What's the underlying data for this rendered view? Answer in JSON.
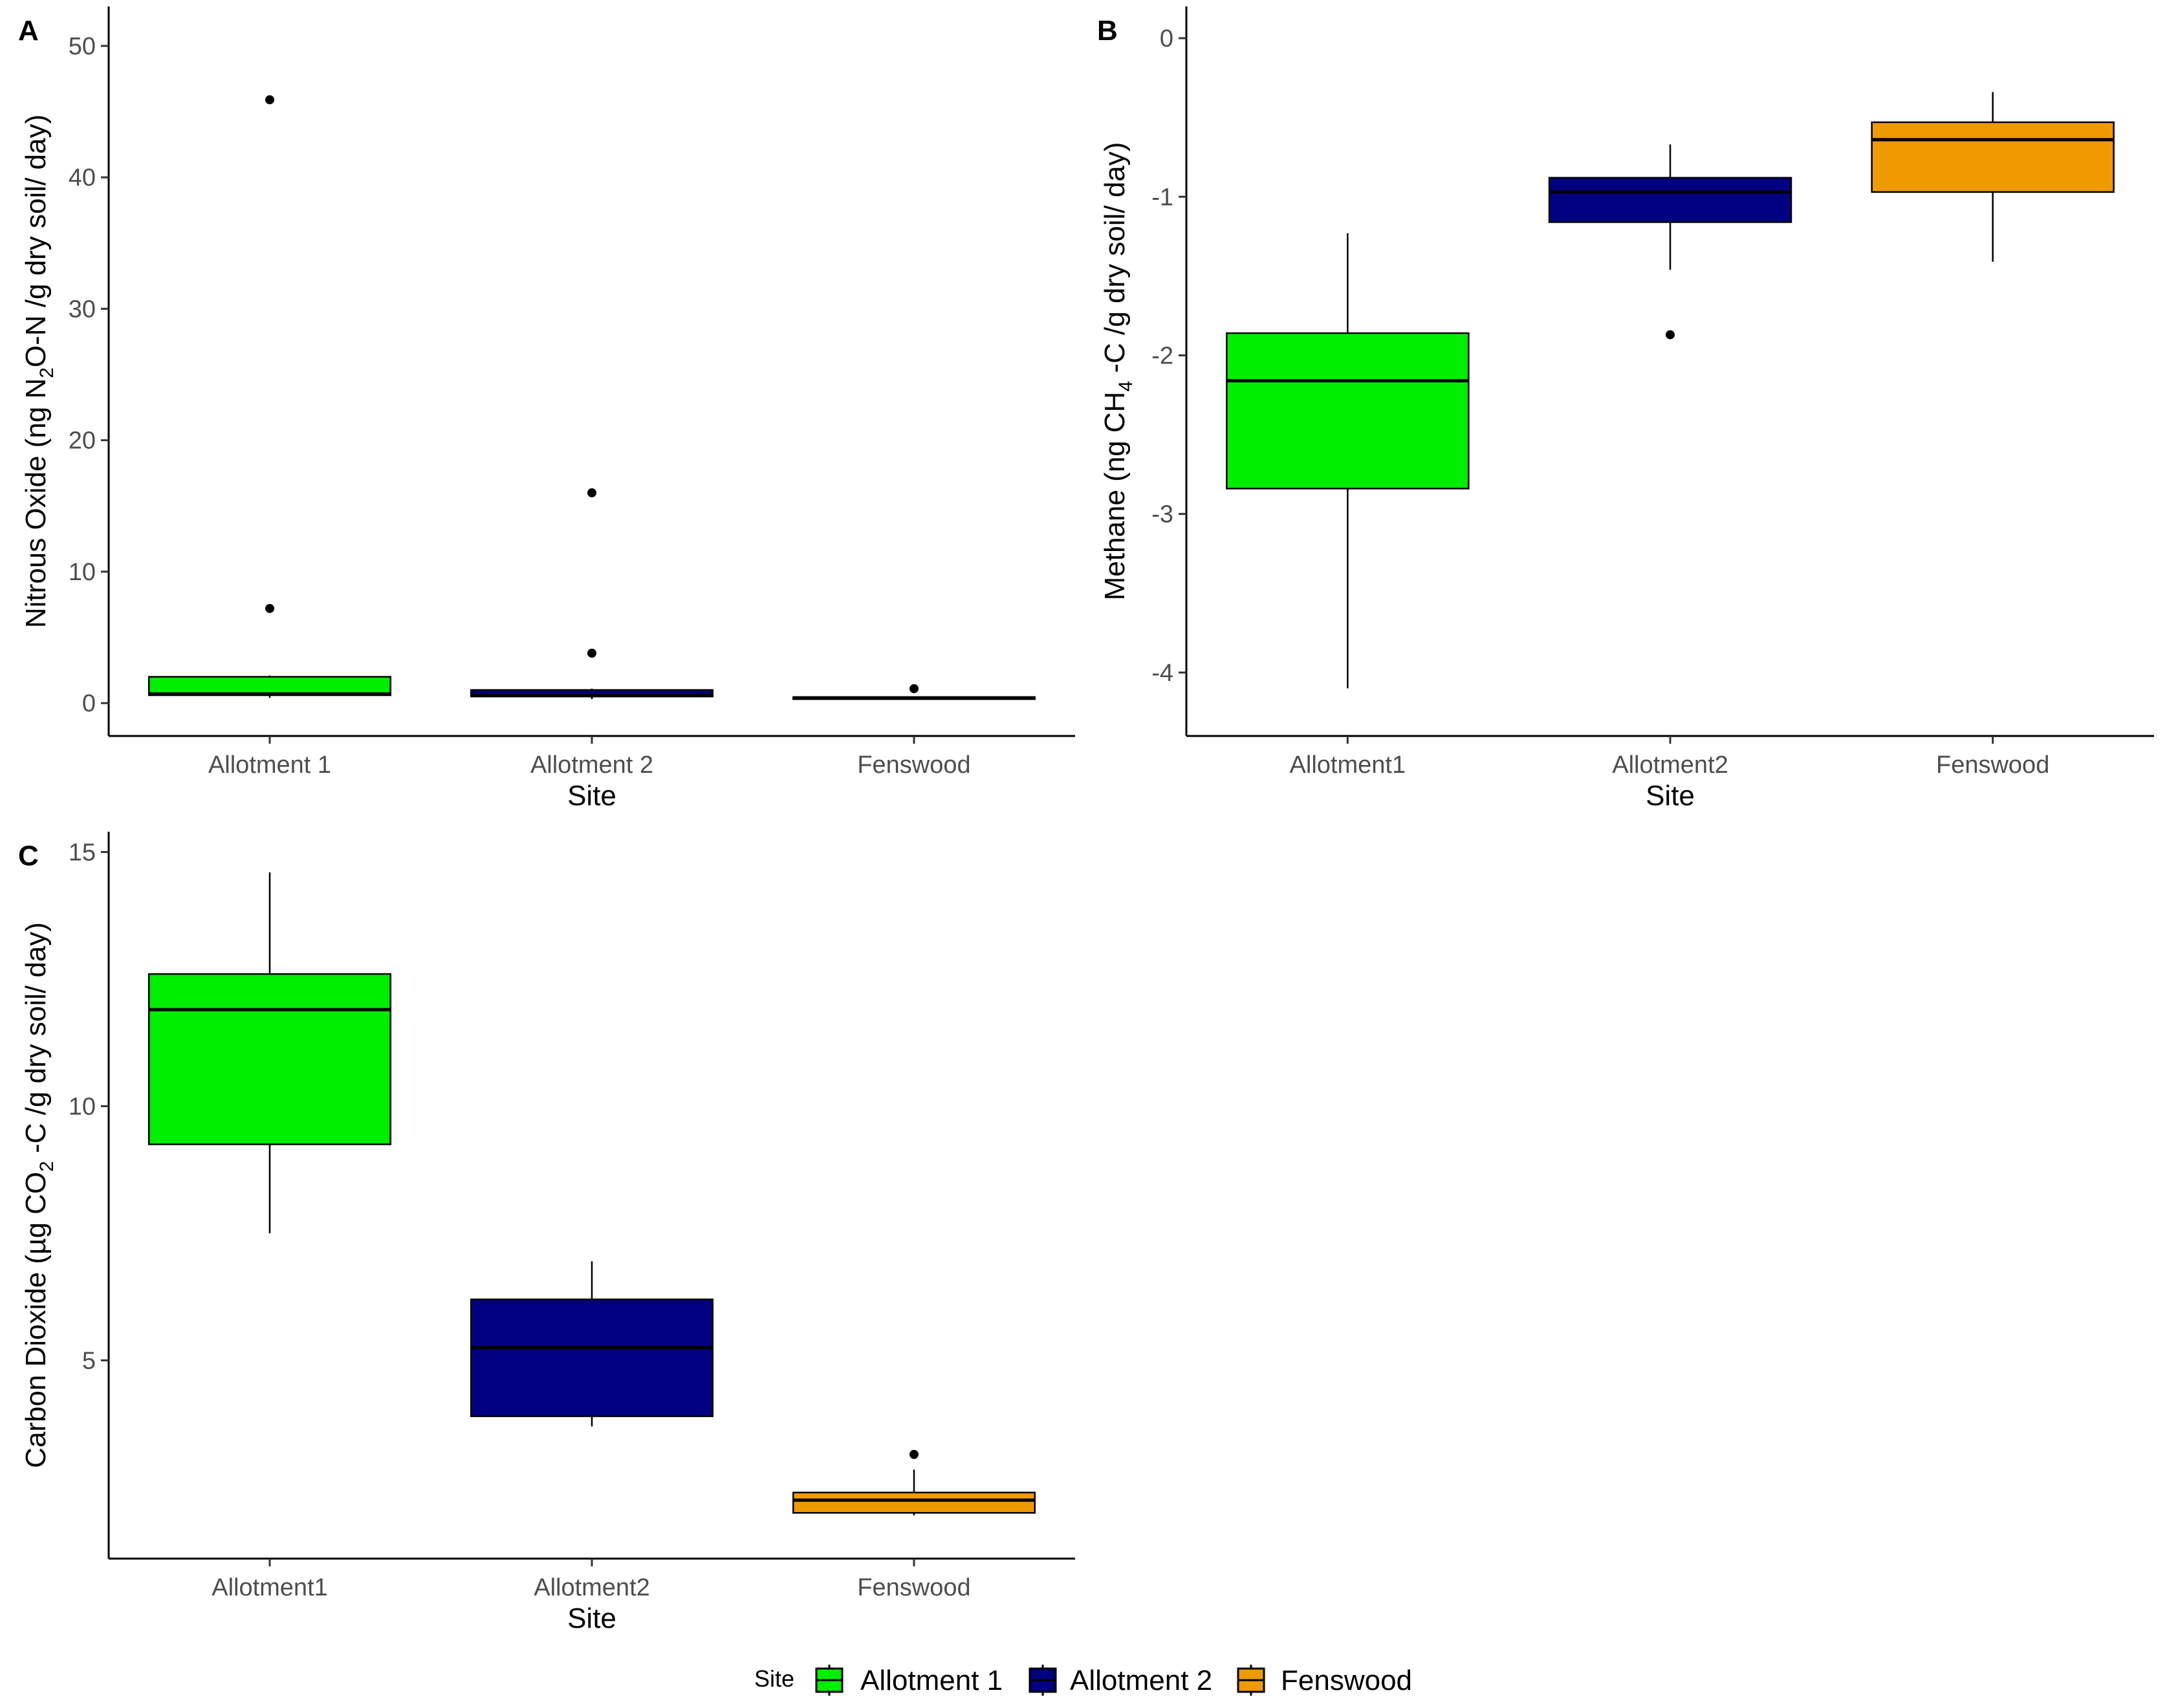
{
  "legend": {
    "title": "Site",
    "items": [
      {
        "label": "Allotment 1",
        "color": "#00EE00"
      },
      {
        "label": "Allotment 2",
        "color": "#000080"
      },
      {
        "label": "Fenswood",
        "color": "#EE9A00"
      }
    ]
  },
  "chart_data": [
    {
      "type": "boxplot",
      "panel": "A",
      "xlabel": "Site",
      "ylabel_parts": [
        "Nitrous Oxide (ng N",
        "2",
        "O-N /g dry soil/ day)"
      ],
      "categories": [
        "Allotment 1",
        "Allotment 2",
        "Fenswood"
      ],
      "ylim": [
        -2.5,
        53
      ],
      "yticks": [
        0,
        10,
        20,
        30,
        40,
        50
      ],
      "ytick_labels": [
        "0",
        "10",
        "20",
        "30",
        "40",
        "50"
      ],
      "colors": [
        "#00EE00",
        "#000080",
        "#EE9A00"
      ],
      "boxes": [
        {
          "whisker_low": 0.4,
          "q1": 0.6,
          "median": 0.7,
          "q3": 2.0,
          "whisker_high": 2.1,
          "outliers": [
            7.2,
            45.9
          ]
        },
        {
          "whisker_low": 0.3,
          "q1": 0.5,
          "median": 0.6,
          "q3": 1.0,
          "whisker_high": 1.1,
          "outliers": [
            3.8,
            16.0
          ]
        },
        {
          "whisker_low": 0.3,
          "q1": 0.35,
          "median": 0.4,
          "q3": 0.45,
          "whisker_high": 0.5,
          "outliers": [
            1.1
          ]
        }
      ]
    },
    {
      "type": "boxplot",
      "panel": "B",
      "xlabel": "Site",
      "ylabel_parts": [
        "Methane (ng CH",
        "4",
        " -C /g dry soil/ day)"
      ],
      "categories": [
        "Allotment1",
        "Allotment2",
        "Fenswood"
      ],
      "ylim": [
        -4.4,
        0.2
      ],
      "yticks": [
        0,
        -1,
        -2,
        -3,
        -4
      ],
      "ytick_labels": [
        "0",
        "-1",
        "-2",
        "-3",
        "-4"
      ],
      "colors": [
        "#00EE00",
        "#000080",
        "#EE9A00"
      ],
      "boxes": [
        {
          "whisker_low": -4.1,
          "q1": -2.84,
          "median": -2.16,
          "q3": -1.86,
          "whisker_high": -1.23,
          "outliers": []
        },
        {
          "whisker_low": -1.46,
          "q1": -1.16,
          "median": -0.97,
          "q3": -0.88,
          "whisker_high": -0.67,
          "outliers": [
            -1.87
          ]
        },
        {
          "whisker_low": -1.41,
          "q1": -0.97,
          "median": -0.64,
          "q3": -0.53,
          "whisker_high": -0.34,
          "outliers": []
        }
      ]
    },
    {
      "type": "boxplot",
      "panel": "C",
      "xlabel": "Site",
      "ylabel_parts": [
        "Carbon Dioxide (µg CO",
        "2",
        " -C /g dry soil/ day)"
      ],
      "categories": [
        "Allotment1",
        "Allotment2",
        "Fenswood"
      ],
      "ylim": [
        1.1,
        15.4
      ],
      "yticks": [
        5,
        10,
        15
      ],
      "ytick_labels": [
        "5",
        "10",
        "15"
      ],
      "colors": [
        "#00EE00",
        "#000080",
        "#EE9A00"
      ],
      "boxes": [
        {
          "whisker_low": 7.5,
          "q1": 9.25,
          "median": 11.9,
          "q3": 12.6,
          "whisker_high": 14.6,
          "outliers": []
        },
        {
          "whisker_low": 3.7,
          "q1": 3.9,
          "median": 5.25,
          "q3": 6.2,
          "whisker_high": 6.95,
          "outliers": []
        },
        {
          "whisker_low": 1.95,
          "q1": 2.0,
          "median": 2.25,
          "q3": 2.4,
          "whisker_high": 2.85,
          "outliers": [
            3.15
          ]
        }
      ]
    }
  ]
}
